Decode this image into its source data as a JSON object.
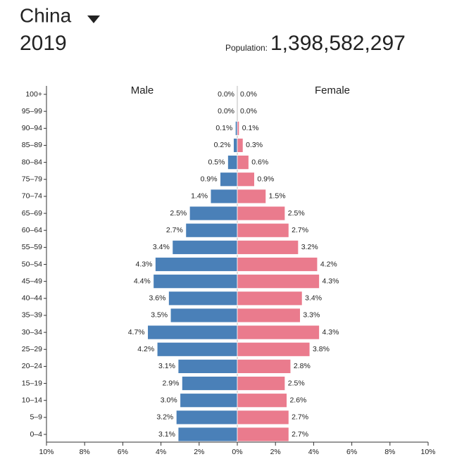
{
  "header": {
    "title": "China",
    "year": "2019",
    "population_label": "Population:",
    "population": "1,398,582,297"
  },
  "chart_data": {
    "type": "pyramid",
    "categories": [
      "100+",
      "95–99",
      "90–94",
      "85–89",
      "80–84",
      "75–79",
      "70–74",
      "65–69",
      "60–64",
      "55–59",
      "50–54",
      "45–49",
      "40–44",
      "35–39",
      "30–34",
      "25–29",
      "20–24",
      "15–19",
      "10–14",
      "5–9",
      "0–4"
    ],
    "series": [
      {
        "name": "Male",
        "color": "#4a80b8",
        "side": "left",
        "values": [
          0,
          0,
          0.1,
          0.2,
          0.5,
          0.9,
          1.4,
          2.5,
          2.7,
          3.4,
          4.3,
          4.4,
          3.6,
          3.5,
          4.7,
          4.2,
          3.1,
          2.9,
          3.0,
          3.2,
          3.1
        ],
        "value_labels": [
          "0.0%",
          "0.0%",
          "0.1%",
          "0.2%",
          "0.5%",
          "0.9%",
          "1.4%",
          "2.5%",
          "2.7%",
          "3.4%",
          "4.3%",
          "4.4%",
          "3.6%",
          "3.5%",
          "4.7%",
          "4.2%",
          "3.1%",
          "2.9%",
          "3.0%",
          "3.2%",
          "3.1%"
        ]
      },
      {
        "name": "Female",
        "color": "#ea7b8d",
        "side": "right",
        "values": [
          0,
          0,
          0.1,
          0.3,
          0.6,
          0.9,
          1.5,
          2.5,
          2.7,
          3.2,
          4.2,
          4.3,
          3.4,
          3.3,
          4.3,
          3.8,
          2.8,
          2.5,
          2.6,
          2.7,
          2.7
        ],
        "value_labels": [
          "0.0%",
          "0.0%",
          "0.1%",
          "0.3%",
          "0.6%",
          "0.9%",
          "1.5%",
          "2.5%",
          "2.7%",
          "3.2%",
          "4.2%",
          "4.3%",
          "3.4%",
          "3.3%",
          "4.3%",
          "3.8%",
          "2.8%",
          "2.5%",
          "2.6%",
          "2.7%",
          "2.7%"
        ]
      }
    ],
    "xlim": [
      -10,
      10
    ],
    "xticks": [
      {
        "value": -10,
        "label": "10%"
      },
      {
        "value": -8,
        "label": "8%"
      },
      {
        "value": -6,
        "label": "6%"
      },
      {
        "value": -4,
        "label": "4%"
      },
      {
        "value": -2,
        "label": "2%"
      },
      {
        "value": 0,
        "label": "0%"
      },
      {
        "value": 2,
        "label": "2%"
      },
      {
        "value": 4,
        "label": "4%"
      },
      {
        "value": 6,
        "label": "6%"
      },
      {
        "value": 8,
        "label": "8%"
      },
      {
        "value": 10,
        "label": "10%"
      }
    ]
  }
}
